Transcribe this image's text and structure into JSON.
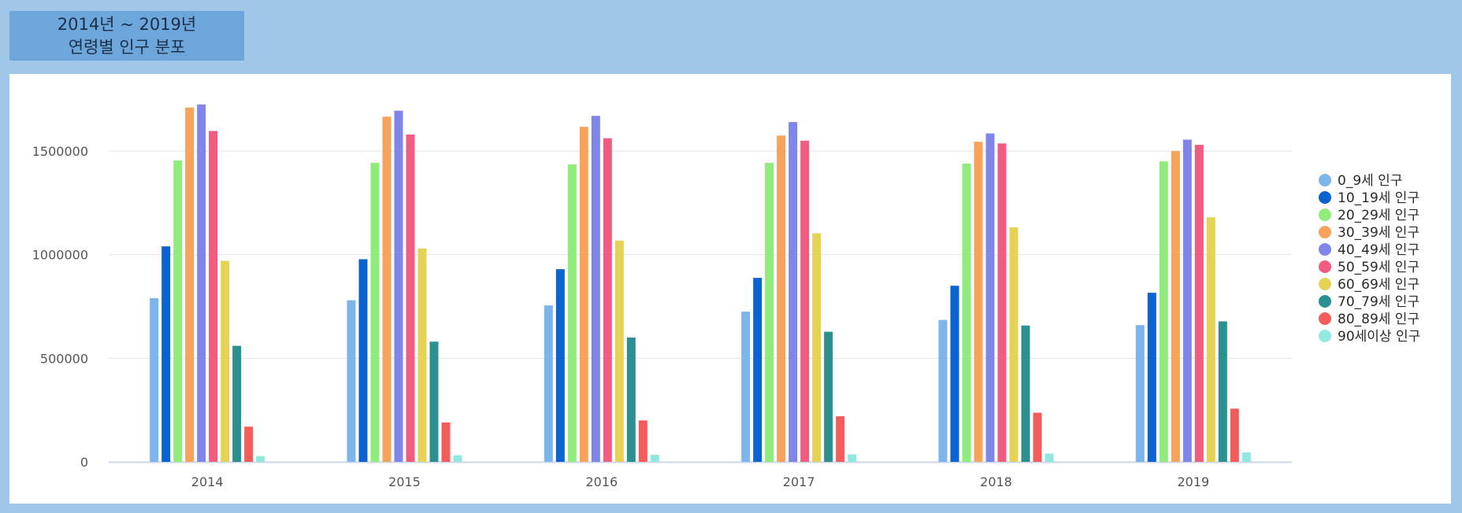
{
  "title": {
    "line1": "2014년 ~ 2019년",
    "line2": "연령별 인구 분포"
  },
  "chart_data": {
    "type": "bar",
    "categories": [
      "2014",
      "2015",
      "2016",
      "2017",
      "2018",
      "2019"
    ],
    "ylim": [
      0,
      1800000
    ],
    "yticks": [
      0,
      500000,
      1000000,
      1500000
    ],
    "ytick_labels": [
      "0",
      "500000",
      "1000000",
      "1500000"
    ],
    "grid": true,
    "legend_position": "right",
    "series": [
      {
        "name": "0_9세 인구",
        "color": "#7cb5ec",
        "values": [
          790000,
          780000,
          755000,
          725000,
          685000,
          660000
        ]
      },
      {
        "name": "10_19세 인구",
        "color": "#0b63d1",
        "values": [
          1040000,
          978000,
          930000,
          888000,
          850000,
          816000
        ]
      },
      {
        "name": "20_29세 인구",
        "color": "#90ed7d",
        "values": [
          1455000,
          1443000,
          1436000,
          1443000,
          1440000,
          1450000
        ]
      },
      {
        "name": "30_39세 인구",
        "color": "#f7a35c",
        "values": [
          1710000,
          1666000,
          1617000,
          1575000,
          1545000,
          1500000
        ]
      },
      {
        "name": "40_49세 인구",
        "color": "#8085e9",
        "values": [
          1725000,
          1695000,
          1670000,
          1640000,
          1585000,
          1555000
        ]
      },
      {
        "name": "50_59세 인구",
        "color": "#f15c80",
        "values": [
          1597000,
          1580000,
          1562000,
          1550000,
          1537000,
          1530000
        ]
      },
      {
        "name": "60_69세 인구",
        "color": "#e4d354",
        "values": [
          970000,
          1030000,
          1068000,
          1103000,
          1132000,
          1180000
        ]
      },
      {
        "name": "70_79세 인구",
        "color": "#2b908f",
        "values": [
          560000,
          580000,
          600000,
          628000,
          658000,
          678000
        ]
      },
      {
        "name": "80_89세 인구",
        "color": "#f45b5b",
        "values": [
          170000,
          190000,
          200000,
          220000,
          237000,
          257000
        ]
      },
      {
        "name": "90세이상 인구",
        "color": "#91e8e1",
        "values": [
          28000,
          32000,
          34000,
          36000,
          40000,
          46000
        ]
      }
    ]
  }
}
